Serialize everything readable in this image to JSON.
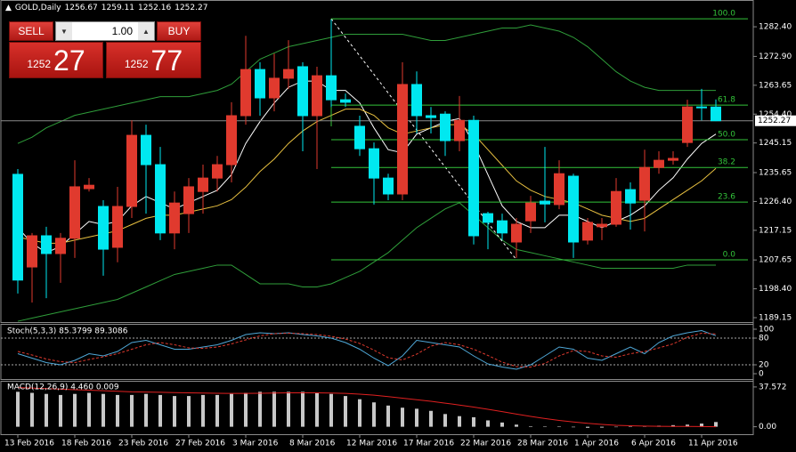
{
  "header": {
    "symbol": "GOLD,Daily",
    "open": 1256.67,
    "high": 1259.11,
    "low": 1252.16,
    "close": 1252.27
  },
  "trade_panel": {
    "sell": "SELL",
    "buy": "BUY",
    "volume": "1.00",
    "bid_prefix": "1252",
    "bid": "27",
    "ask_prefix": "1252",
    "ask": "77"
  },
  "chart_data": [
    {
      "type": "candlestick",
      "categories": [
        "13 Feb 2016",
        null,
        null,
        null,
        "18 Feb 2016",
        null,
        null,
        null,
        "23 Feb 2016",
        null,
        null,
        null,
        "27 Feb 2016",
        null,
        null,
        null,
        "3 Mar 2016",
        null,
        null,
        null,
        "8 Mar 2016",
        null,
        null,
        null,
        "12 Mar 2016",
        null,
        null,
        null,
        "17 Mar 2016",
        null,
        null,
        null,
        "22 Mar 2016",
        null,
        null,
        null,
        "28 Mar 2016",
        null,
        null,
        null,
        "1 Apr 2016",
        null,
        null,
        null,
        "6 Apr 2016",
        null,
        null,
        null,
        "11 Apr 2016",
        null
      ],
      "open": [
        1235.1,
        1205.4,
        1215.4,
        1209.7,
        1214.6,
        1230.5,
        1224.8,
        1211.7,
        1224.8,
        1247.6,
        1238.2,
        1216.3,
        1222.5,
        1229.6,
        1233.9,
        1238.2,
        1253.9,
        1268.7,
        1259.6,
        1265.9,
        1269.6,
        1253.9,
        1266.7,
        1259.0,
        1250.5,
        1243.3,
        1233.9,
        1228.8,
        1263.9,
        1253.9,
        1254.4,
        1245.9,
        1252.4,
        1222.5,
        1220.2,
        1213.4,
        1220.2,
        1226.5,
        1225.4,
        1234.5,
        1214.0,
        1218.3,
        1219.1,
        1230.2,
        1226.8,
        1237.3,
        1239.6,
        1245.3,
        1256.7,
        1256.67
      ],
      "high": [
        1236.8,
        1216.3,
        1218.3,
        1216.3,
        1239.6,
        1233.9,
        1226.8,
        1231.1,
        1252.4,
        1251.0,
        1243.9,
        1229.6,
        1233.9,
        1238.2,
        1241.0,
        1258.2,
        1279.5,
        1271.0,
        1273.8,
        1278.1,
        1271.0,
        1269.6,
        1284.7,
        1261.0,
        1253.9,
        1245.3,
        1235.3,
        1271.0,
        1268.1,
        1256.7,
        1255.3,
        1260.2,
        1253.9,
        1223.1,
        1222.5,
        1221.1,
        1228.2,
        1243.9,
        1239.6,
        1235.3,
        1221.1,
        1221.1,
        1233.9,
        1232.5,
        1243.0,
        1242.5,
        1242.5,
        1259.0,
        1262.5,
        1259.11
      ],
      "low": [
        1196.9,
        1194.0,
        1195.4,
        1200.3,
        1208.3,
        1229.6,
        1202.6,
        1206.9,
        1221.1,
        1222.5,
        1214.0,
        1211.1,
        1216.3,
        1222.5,
        1229.6,
        1232.5,
        1251.0,
        1253.9,
        1255.3,
        1262.5,
        1242.5,
        1236.8,
        1256.7,
        1256.7,
        1241.0,
        1225.4,
        1226.8,
        1226.8,
        1248.2,
        1248.2,
        1241.0,
        1242.5,
        1212.6,
        1211.1,
        1214.0,
        1208.3,
        1216.3,
        1219.7,
        1223.9,
        1208.3,
        1212.6,
        1214.0,
        1218.3,
        1217.4,
        1216.8,
        1235.3,
        1238.2,
        1243.9,
        1252.4,
        1252.16
      ],
      "close": [
        1201.2,
        1215.4,
        1209.7,
        1214.6,
        1231.1,
        1231.6,
        1211.1,
        1224.8,
        1247.6,
        1238.2,
        1216.3,
        1225.9,
        1231.1,
        1233.9,
        1238.2,
        1253.9,
        1268.7,
        1259.6,
        1265.9,
        1268.7,
        1253.9,
        1266.7,
        1259.0,
        1258.2,
        1243.3,
        1233.9,
        1228.8,
        1263.9,
        1253.9,
        1253.3,
        1245.9,
        1252.4,
        1215.4,
        1219.7,
        1216.3,
        1219.1,
        1225.9,
        1225.6,
        1235.3,
        1213.4,
        1219.7,
        1219.1,
        1229.6,
        1225.9,
        1237.3,
        1239.6,
        1240.2,
        1256.7,
        1256.5,
        1252.27
      ],
      "up_color": "#e03a2e",
      "down_color": "#00e8f0",
      "overlays": [
        {
          "color": "#2f9e3a",
          "values": [
            1245,
            1247,
            1250,
            1252,
            1254,
            1255,
            1256,
            1257,
            1258,
            1259,
            1260,
            1260,
            1260,
            1261,
            1262,
            1264,
            1268,
            1272,
            1274,
            1276,
            1277,
            1278,
            1279,
            1280,
            1280,
            1280,
            1280,
            1280,
            1279,
            1278,
            1278,
            1279,
            1280,
            1281,
            1282,
            1282,
            1283,
            1282,
            1281,
            1279,
            1276,
            1272,
            1268,
            1265,
            1263,
            1262,
            1262,
            1262,
            1262,
            1262
          ]
        },
        {
          "color": "#2f9e3a",
          "values": [
            1188,
            1189,
            1190,
            1191,
            1192,
            1193,
            1194,
            1195,
            1197,
            1199,
            1201,
            1203,
            1204,
            1205,
            1206,
            1206,
            1203,
            1200,
            1200,
            1200,
            1199,
            1199,
            1200,
            1202,
            1204,
            1207,
            1210,
            1214,
            1218,
            1221,
            1224,
            1226,
            1222,
            1218,
            1214,
            1211,
            1210,
            1209,
            1208,
            1207,
            1206,
            1205,
            1205,
            1205,
            1205,
            1205,
            1205,
            1206,
            1206,
            1206
          ]
        },
        {
          "color": "#ffffff",
          "values": [
            1218,
            1213,
            1210,
            1212,
            1216,
            1220,
            1219,
            1220,
            1225,
            1228,
            1226,
            1224,
            1226,
            1228,
            1230,
            1235,
            1245,
            1252,
            1258,
            1263,
            1265,
            1265,
            1262,
            1262,
            1258,
            1250,
            1243,
            1242,
            1248,
            1250,
            1252,
            1253,
            1245,
            1235,
            1225,
            1220,
            1218,
            1218,
            1222,
            1222,
            1220,
            1218,
            1220,
            1222,
            1225,
            1230,
            1234,
            1240,
            1245,
            1248
          ]
        },
        {
          "color": "#e8c040",
          "values": [
            1215,
            1214,
            1213,
            1213,
            1214,
            1215,
            1216,
            1217,
            1219,
            1221,
            1222,
            1222,
            1223,
            1224,
            1225,
            1227,
            1231,
            1236,
            1240,
            1245,
            1249,
            1252,
            1254,
            1256,
            1256,
            1254,
            1250,
            1248,
            1249,
            1250,
            1251,
            1251,
            1248,
            1243,
            1238,
            1233,
            1230,
            1228,
            1227,
            1226,
            1224,
            1222,
            1221,
            1220,
            1221,
            1224,
            1227,
            1230,
            1233,
            1237
          ]
        }
      ],
      "fib_color": "#33c43a",
      "fib_levels": [
        {
          "label": "100.0",
          "price": 1284.96
        },
        {
          "label": "61.8",
          "price": 1257.3
        },
        {
          "label": "50.0",
          "price": 1246.2
        },
        {
          "label": "38.2",
          "price": 1237.3
        },
        {
          "label": "23.6",
          "price": 1226.2
        },
        {
          "label": "0.0",
          "price": 1207.7
        }
      ],
      "last_price": 1252.27,
      "ylim": [
        1188.3,
        1288.7
      ],
      "yticks": [
        {
          "value": 1282.4,
          "label": "1282.40"
        },
        {
          "value": 1272.9,
          "label": "1272.90"
        },
        {
          "value": 1263.65,
          "label": "1263.65"
        },
        {
          "value": 1254.4,
          "label": "1254.40"
        },
        {
          "value": 1245.15,
          "label": "1245.15"
        },
        {
          "value": 1235.65,
          "label": "1235.65"
        },
        {
          "value": 1226.4,
          "label": "1226.40"
        },
        {
          "value": 1217.15,
          "label": "1217.15"
        },
        {
          "value": 1207.65,
          "label": "1207.65"
        },
        {
          "value": 1198.4,
          "label": "1198.40"
        },
        {
          "value": 1189.15,
          "label": "1189.15"
        }
      ]
    },
    {
      "type": "line",
      "title": "Stoch(5,3,3) 85.3799 89.3086",
      "series": [
        {
          "color": "#4fa8d8",
          "dash": false,
          "values": [
            45,
            35,
            25,
            20,
            30,
            45,
            40,
            50,
            70,
            75,
            65,
            55,
            55,
            60,
            65,
            75,
            88,
            92,
            90,
            92,
            88,
            85,
            80,
            70,
            55,
            35,
            18,
            40,
            75,
            70,
            65,
            60,
            40,
            22,
            15,
            10,
            20,
            40,
            60,
            55,
            35,
            30,
            45,
            60,
            45,
            70,
            85,
            92,
            97,
            85.38
          ]
        },
        {
          "color": "#e03a2e",
          "dash": true,
          "values": [
            50,
            42,
            33,
            27,
            25,
            32,
            38,
            45,
            55,
            65,
            70,
            65,
            58,
            57,
            60,
            67,
            76,
            85,
            90,
            91,
            90,
            88,
            84,
            78,
            68,
            53,
            36,
            31,
            44,
            62,
            70,
            65,
            55,
            41,
            26,
            16,
            15,
            23,
            40,
            52,
            50,
            40,
            37,
            45,
            50,
            58,
            67,
            82,
            91,
            89.31
          ]
        }
      ],
      "levels": [
        80,
        20
      ],
      "ylim": [
        0,
        100
      ],
      "yticks": [
        100,
        80,
        20,
        0
      ]
    },
    {
      "type": "bar",
      "title": "MACD(12,26,9) 4.460 0.009",
      "values": [
        33,
        32,
        31,
        30,
        31,
        32,
        31,
        30,
        30,
        31,
        30,
        29,
        29,
        30,
        30,
        31,
        32,
        33,
        33,
        33,
        33,
        32,
        31,
        29,
        26,
        23,
        20,
        18,
        17,
        15,
        12,
        10,
        9,
        6,
        4,
        2,
        0.5,
        0.3,
        0.2,
        -0.5,
        -1,
        -0.8,
        -0.3,
        0.2,
        0.5,
        1,
        1.5,
        2,
        3,
        4.46
      ],
      "color": "#c8c8c8",
      "signal": {
        "color": "#e02020",
        "values": [
          37,
          36.5,
          36,
          35.5,
          35,
          34.5,
          34,
          33.5,
          33,
          32.8,
          32.5,
          32.2,
          32,
          31.8,
          31.6,
          31.5,
          31.5,
          31.6,
          31.8,
          32,
          32,
          32,
          31.8,
          31.5,
          30.8,
          29.8,
          28.5,
          27,
          25.5,
          24,
          22.3,
          20.5,
          18.6,
          16.5,
          14.3,
          12,
          9.8,
          7.8,
          6,
          4.5,
          3.2,
          2.2,
          1.4,
          0.9,
          0.6,
          0.4,
          0.3,
          0.3,
          0.2,
          0.009
        ]
      },
      "ylim": [
        -2,
        40
      ],
      "yticks": [
        37.572,
        {
          "value": 0,
          "label": "0.00"
        }
      ]
    }
  ]
}
